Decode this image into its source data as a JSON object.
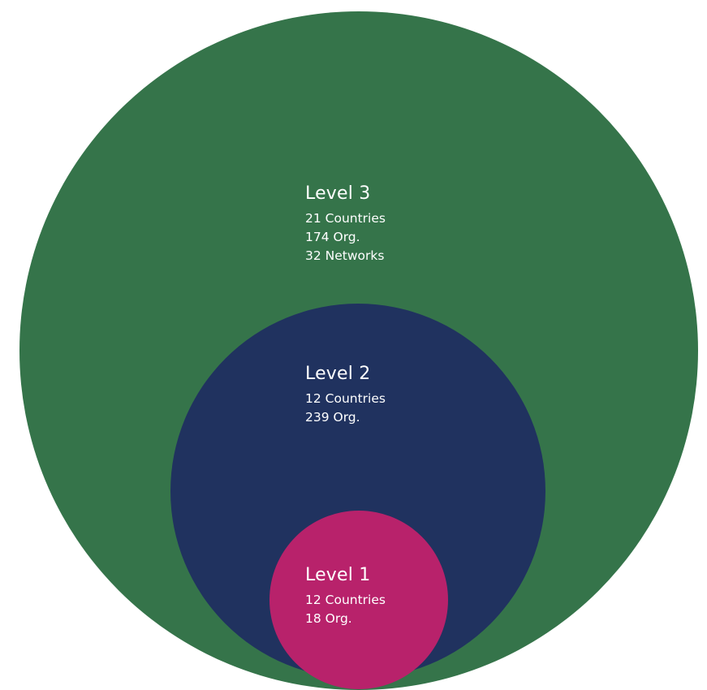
{
  "levels": [
    {
      "title": "Level 3",
      "lines": [
        "21 Countries",
        "174 Org.",
        "32 Networks"
      ],
      "color": "#35744a"
    },
    {
      "title": "Level 2",
      "lines": [
        "12 Countries",
        "239 Org."
      ],
      "color": "#20325f"
    },
    {
      "title": "Level 1",
      "lines": [
        "12 Countries",
        "18 Org."
      ],
      "color": "#b8226b"
    }
  ]
}
